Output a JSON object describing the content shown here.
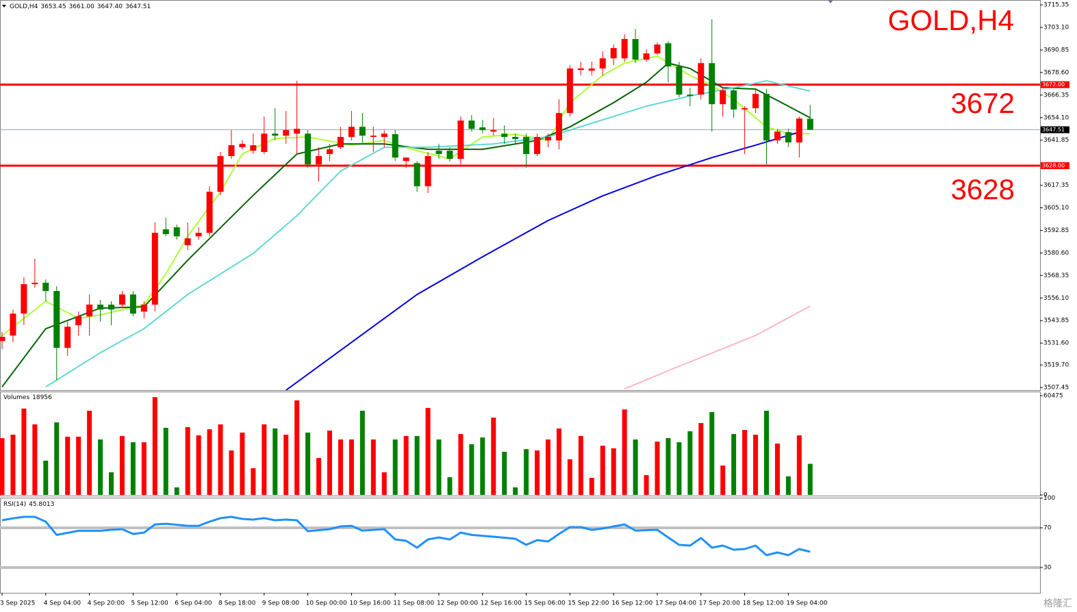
{
  "watermark": "格隆汇",
  "chart_data": [
    {
      "type": "candlestick",
      "title": "GOLD,H4",
      "last_bar_labels": [
        "3653.45",
        "3661.00",
        "3647.40",
        "3647.51"
      ],
      "categories": [
        "3 Sep 2025",
        null,
        null,
        null,
        "4 Sep 04:00",
        null,
        null,
        null,
        "4 Sep 20:00",
        null,
        null,
        null,
        "5 Sep 12:00",
        null,
        null,
        null,
        "6 Sep 04:00",
        null,
        null,
        null,
        "8 Sep 18:00",
        null,
        null,
        null,
        "9 Sep 08:00",
        null,
        null,
        null,
        "10 Sep 00:00",
        null,
        null,
        null,
        "10 Sep 16:00",
        null,
        null,
        null,
        "11 Sep 08:00",
        null,
        null,
        null,
        "12 Sep 00:00",
        null,
        null,
        null,
        "12 Sep 16:00",
        null,
        null,
        null,
        "15 Sep 06:00",
        null,
        null,
        null,
        "15 Sep 22:00",
        null,
        null,
        null,
        "16 Sep 12:00",
        null,
        null,
        null,
        "17 Sep 04:00",
        null,
        null,
        null,
        "17 Sep 20:00",
        null,
        null,
        null,
        "18 Sep 12:00",
        null,
        null,
        null,
        "19 Sep 04:00",
        null,
        null
      ],
      "open": [
        3532.7,
        3535.7,
        3547.6,
        3563.6,
        3564.4,
        3559.9,
        3529.0,
        3541.3,
        3546.1,
        3552.5,
        3552.5,
        3552.5,
        3558.0,
        3548.7,
        3552.5,
        3593.4,
        3594.5,
        3584.8,
        3589.6,
        3591.5,
        3613.8,
        3633.2,
        3638.0,
        3636.1,
        3635.4,
        3645.4,
        3644.3,
        3645.4,
        3645.4,
        3628.7,
        3634.3,
        3638.0,
        3643.6,
        3649.1,
        3643.6,
        3643.6,
        3645.1,
        3630.5,
        3629.4,
        3616.8,
        3636.1,
        3636.1,
        3631.7,
        3652.5,
        3648.8,
        3646.5,
        3645.4,
        3643.6,
        3643.6,
        3634.3,
        3641.7,
        3641.7,
        3656.6,
        3680.0,
        3679.6,
        3680.8,
        3686.3,
        3686.3,
        3696.8,
        3685.6,
        3689.0,
        3694.5,
        3681.9,
        3666.6,
        3666.6,
        3683.7,
        3661.4,
        3668.9,
        3658.5,
        3659.2,
        3667.0,
        3641.7,
        3646.2,
        3640.6,
        3653.45
      ],
      "high": [
        3537.6,
        3549.8,
        3567.3,
        3577.4,
        3566.2,
        3562.5,
        3543.2,
        3548.7,
        3558.0,
        3555.1,
        3554.3,
        3559.9,
        3559.9,
        3554.3,
        3597.1,
        3599.7,
        3596.0,
        3597.1,
        3594.5,
        3616.8,
        3635.4,
        3647.3,
        3641.7,
        3645.4,
        3654.7,
        3659.2,
        3657.7,
        3674.1,
        3647.3,
        3638.0,
        3639.8,
        3649.1,
        3657.7,
        3656.6,
        3649.1,
        3647.3,
        3647.3,
        3632.4,
        3630.5,
        3635.4,
        3639.8,
        3638.0,
        3654.7,
        3655.5,
        3652.9,
        3654.0,
        3649.9,
        3645.4,
        3645.4,
        3645.4,
        3645.4,
        3664.0,
        3682.6,
        3684.5,
        3684.5,
        3690.1,
        3693.8,
        3699.3,
        3702.3,
        3691.2,
        3694.9,
        3695.6,
        3684.5,
        3670.3,
        3686.3,
        3707.5,
        3670.3,
        3670.3,
        3660.3,
        3669.6,
        3669.6,
        3648.0,
        3648.0,
        3654.7,
        3661.0
      ],
      "low": [
        3528.3,
        3532.0,
        3541.3,
        3561.7,
        3554.3,
        3511.5,
        3524.6,
        3535.7,
        3535.7,
        3543.2,
        3541.3,
        3550.6,
        3546.1,
        3545.0,
        3548.7,
        3589.6,
        3587.8,
        3582.2,
        3587.8,
        3589.6,
        3611.9,
        3631.7,
        3636.9,
        3634.3,
        3634.3,
        3641.7,
        3639.8,
        3634.3,
        3626.8,
        3619.4,
        3630.5,
        3636.9,
        3641.7,
        3639.8,
        3635.4,
        3638.0,
        3630.5,
        3626.8,
        3613.8,
        3613.1,
        3631.7,
        3630.2,
        3628.7,
        3646.5,
        3645.4,
        3644.3,
        3639.8,
        3639.8,
        3626.8,
        3633.2,
        3638.0,
        3636.9,
        3654.7,
        3677.0,
        3677.0,
        3677.0,
        3682.6,
        3684.5,
        3683.7,
        3684.5,
        3688.2,
        3673.3,
        3665.1,
        3660.3,
        3664.0,
        3646.5,
        3654.7,
        3654.0,
        3634.3,
        3656.6,
        3628.7,
        3639.8,
        3638.0,
        3632.4,
        3647.4
      ],
      "close": [
        3535.0,
        3547.6,
        3563.6,
        3564.4,
        3559.9,
        3529.0,
        3540.5,
        3546.1,
        3552.5,
        3549.8,
        3549.8,
        3558.0,
        3547.6,
        3552.5,
        3591.5,
        3590.8,
        3589.6,
        3588.5,
        3591.5,
        3613.8,
        3633.2,
        3639.1,
        3639.8,
        3639.1,
        3645.4,
        3644.3,
        3647.3,
        3648.0,
        3628.7,
        3633.2,
        3636.9,
        3643.6,
        3649.1,
        3644.3,
        3644.3,
        3645.4,
        3632.4,
        3632.4,
        3616.8,
        3633.2,
        3634.3,
        3631.7,
        3652.5,
        3648.0,
        3647.3,
        3647.3,
        3643.6,
        3642.5,
        3634.3,
        3643.6,
        3643.6,
        3656.6,
        3680.8,
        3680.8,
        3680.8,
        3686.3,
        3691.9,
        3696.8,
        3685.6,
        3689.0,
        3693.8,
        3681.9,
        3666.6,
        3665.9,
        3683.7,
        3661.4,
        3668.9,
        3658.5,
        3659.2,
        3667.0,
        3641.7,
        3646.5,
        3640.6,
        3653.6,
        3647.51
      ],
      "up_color": "#ff0000",
      "down_color": "#008000",
      "lines": [
        {
          "color": "#adff2f",
          "x": [
            0,
            4,
            7,
            9,
            13,
            15,
            17,
            20,
            22,
            25,
            28,
            32,
            35,
            38,
            41,
            44,
            47,
            50,
            52,
            55,
            57,
            60,
            63,
            65,
            67,
            70,
            72,
            74
          ],
          "values": [
            3535.7,
            3554.3,
            3545.0,
            3546.9,
            3552.5,
            3569.2,
            3589.6,
            3613.8,
            3634.3,
            3642.8,
            3643.6,
            3639.1,
            3641.7,
            3636.1,
            3631.7,
            3643.6,
            3645.1,
            3641.7,
            3662.2,
            3677.0,
            3683.7,
            3687.5,
            3677.0,
            3671.4,
            3664.0,
            3649.1,
            3645.4,
            3645.4
          ]
        },
        {
          "color": "#006400",
          "x": [
            0,
            4,
            9,
            13,
            17,
            23,
            27,
            31,
            35,
            39,
            44,
            49,
            52,
            56,
            59,
            61,
            63,
            66,
            69,
            72,
            74
          ],
          "values": [
            3507.8,
            3539.4,
            3550.6,
            3551.3,
            3576.6,
            3611.9,
            3634.3,
            3639.8,
            3639.8,
            3636.9,
            3636.9,
            3641.7,
            3649.1,
            3662.2,
            3673.3,
            3683.7,
            3680.8,
            3670.3,
            3669.6,
            3660.3,
            3654.0
          ]
        },
        {
          "color": "#5fd8d2",
          "x": [
            4,
            9,
            13,
            17,
            23,
            27,
            31,
            35,
            39,
            45,
            50,
            55,
            59,
            63,
            67,
            70,
            74
          ],
          "values": [
            3507.8,
            3526.4,
            3539.4,
            3558.0,
            3580.3,
            3600.8,
            3625.0,
            3638.0,
            3638.0,
            3639.8,
            3643.6,
            3652.9,
            3660.3,
            3665.9,
            3670.3,
            3674.1,
            3668.5
          ]
        },
        {
          "color": "#0000e0",
          "x": [
            26,
            32,
            38,
            44,
            50,
            55,
            60,
            65,
            69,
            73
          ],
          "values": [
            3506.0,
            3532.0,
            3558.0,
            3578.5,
            3598.2,
            3611.6,
            3622.7,
            3632.4,
            3639.1,
            3646.2
          ]
        },
        {
          "color": "#ffb6c1",
          "x": [
            57,
            62,
            69,
            74
          ],
          "values": [
            3506.7,
            3519.0,
            3535.7,
            3551.7
          ]
        }
      ],
      "levels": [
        {
          "value": 3672,
          "label": "3672.00"
        },
        {
          "value": 3628,
          "label": "3628.00"
        }
      ],
      "level_color": "#ff0000",
      "ylim": [
        3506,
        3718
      ],
      "yticks": [
        3715.35,
        {
          "value": 3703.1,
          "label": "3703.10"
        },
        3690.85,
        {
          "value": 3678.6,
          "label": "3678.60"
        },
        3666.35,
        {
          "value": 3654.1,
          "label": "3654.10"
        },
        3641.85,
        3617.35,
        {
          "value": 3605.1,
          "label": "3605.10"
        },
        3592.85,
        {
          "value": 3580.6,
          "label": "3580.60"
        },
        3568.35,
        {
          "value": 3556.1,
          "label": "3556.10"
        },
        3543.85,
        {
          "value": 3531.6,
          "label": "3531.60"
        },
        {
          "value": 3519.7,
          "label": "3519.70"
        },
        3507.45
      ]
    },
    {
      "type": "bar",
      "title": "Volumes",
      "values": [
        34600,
        36700,
        52600,
        43000,
        20900,
        44200,
        35500,
        35500,
        51300,
        33800,
        13800,
        35900,
        32100,
        32100,
        59600,
        40900,
        4600,
        41300,
        36300,
        40000,
        43000,
        27100,
        38000,
        16300,
        43000,
        40500,
        36700,
        57600,
        38000,
        22500,
        39200,
        33800,
        33800,
        51300,
        33800,
        13800,
        33800,
        35900,
        35900,
        53000,
        33800,
        10800,
        37100,
        30900,
        35000,
        47100,
        26300,
        4600,
        27900,
        27100,
        33800,
        40500,
        21700,
        35900,
        10400,
        30000,
        28400,
        52100,
        33800,
        12100,
        32500,
        34600,
        32100,
        38800,
        43800,
        50500,
        17900,
        37100,
        39600,
        36700,
        51300,
        31300,
        11300,
        36300,
        18956
      ],
      "ylim": [
        0,
        60475
      ],
      "yticks": [
        0,
        60475
      ]
    },
    {
      "type": "line",
      "title": "RSI(14)",
      "color": "#1e90ff",
      "values": [
        77.6,
        79.5,
        81,
        81,
        76.2,
        62.8,
        64.9,
        67,
        67,
        67,
        68,
        68.6,
        63.8,
        65.2,
        73.4,
        74.1,
        73,
        72,
        72,
        76.2,
        79.7,
        81,
        79,
        78.3,
        79.7,
        77.6,
        78.3,
        77.6,
        66.6,
        67.6,
        68.6,
        71.4,
        72,
        67.2,
        67.9,
        68.6,
        58.3,
        56.9,
        50,
        58.3,
        60.3,
        58.3,
        65.2,
        62.8,
        61.9,
        61,
        60,
        59,
        52.8,
        57.6,
        56.2,
        63.8,
        70.7,
        70.7,
        67.9,
        69.3,
        71.4,
        73.4,
        67.2,
        67.6,
        67.9,
        60.3,
        52.8,
        52.1,
        59.7,
        50,
        52.1,
        47.9,
        48.6,
        52.1,
        42.4,
        45.2,
        42.4,
        48.6,
        45.8013
      ],
      "levels": [
        70,
        30
      ],
      "level_color": "#c0c0c0",
      "ylim": [
        0,
        100
      ],
      "yticks": [
        100,
        70,
        30
      ]
    }
  ]
}
